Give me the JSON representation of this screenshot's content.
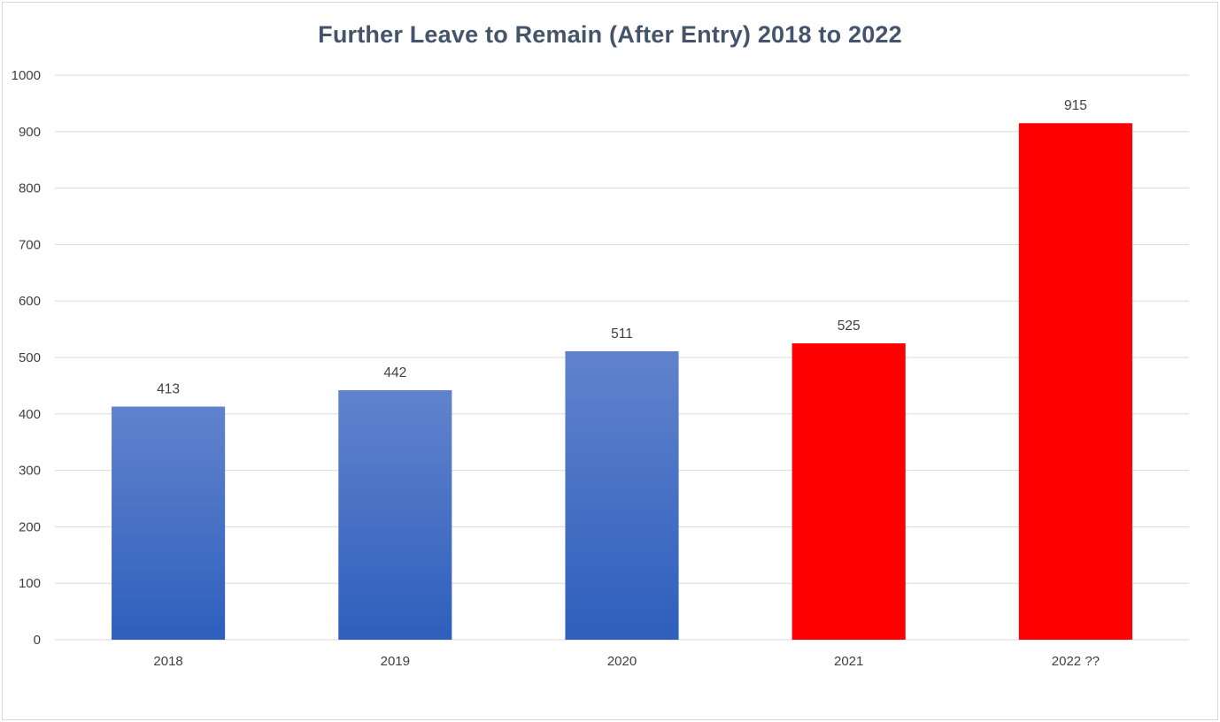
{
  "chart_data": {
    "type": "bar",
    "title": "Further Leave to Remain (After Entry) 2018 to 2022",
    "xlabel": "",
    "ylabel": "",
    "categories": [
      "2018",
      "2019",
      "2020",
      "2021",
      "2022 ??"
    ],
    "values": [
      413,
      442,
      511,
      525,
      915
    ],
    "data_labels": [
      "413",
      "442",
      "511",
      "525",
      "915"
    ],
    "y_ticks": [
      "0",
      "100",
      "200",
      "300",
      "400",
      "500",
      "600",
      "700",
      "800",
      "900",
      "1000"
    ],
    "ylim": [
      0,
      1000
    ],
    "grid": true,
    "legend": "none",
    "bar_colors": [
      "blue-gradient",
      "blue-gradient",
      "blue-gradient",
      "#ff0000",
      "#ff0000"
    ],
    "colors": {
      "blue_top": "#6183cc",
      "blue_bottom": "#2e5fbd",
      "red": "#ff0000",
      "title": "#44546a",
      "grid": "#d9d9d9",
      "text": "#404040"
    }
  }
}
